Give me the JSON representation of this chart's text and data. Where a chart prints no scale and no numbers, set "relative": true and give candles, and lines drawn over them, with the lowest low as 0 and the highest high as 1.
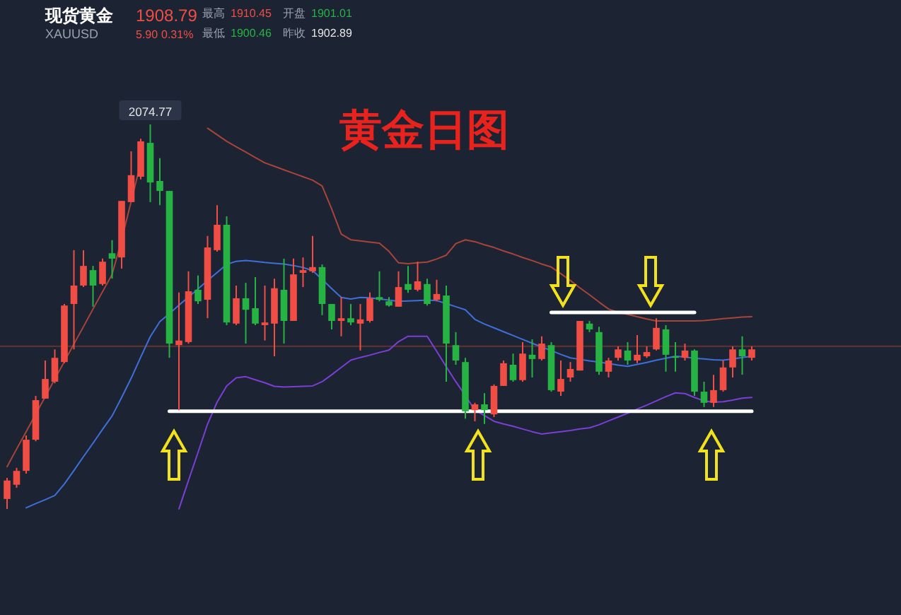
{
  "chart_data": {
    "type": "candlestick",
    "relative": true,
    "title": "黄金日图",
    "annotations": [
      "现货黄金",
      "XAUUSD",
      "1908.79",
      "5.90",
      "0.31%",
      "最高",
      "1910.45",
      "开盘",
      "1901.01",
      "最低",
      "1900.46",
      "昨收",
      "1902.89",
      {
        "text": "2074.77",
        "y": 1.0
      }
    ],
    "categories": [
      null,
      null,
      null,
      null,
      null,
      null,
      null,
      null,
      null,
      null,
      null,
      null,
      null,
      null,
      null,
      null,
      null,
      null,
      null,
      null,
      null,
      null,
      null,
      null,
      null,
      null,
      null,
      null,
      null,
      null,
      null,
      null,
      null,
      null,
      null,
      null,
      null,
      null,
      null,
      null,
      null,
      null,
      null,
      null,
      null,
      null,
      null,
      null,
      null,
      null,
      null,
      null,
      null,
      null,
      null,
      null,
      null,
      null,
      null,
      null,
      null,
      null,
      null,
      null,
      null,
      null,
      null,
      null,
      null,
      null,
      null,
      null,
      null,
      null,
      null,
      null,
      null,
      null,
      null
    ],
    "ohlc": [
      [
        0.026,
        0.081,
        0.0,
        0.074
      ],
      [
        0.063,
        0.107,
        0.055,
        0.099
      ],
      [
        0.099,
        0.191,
        0.092,
        0.18
      ],
      [
        0.18,
        0.294,
        0.176,
        0.283
      ],
      [
        0.287,
        0.386,
        0.287,
        0.338
      ],
      [
        0.331,
        0.415,
        0.327,
        0.393
      ],
      [
        0.382,
        0.533,
        0.379,
        0.529
      ],
      [
        0.533,
        0.673,
        0.415,
        0.581
      ],
      [
        0.581,
        0.673,
        0.577,
        0.632
      ],
      [
        0.621,
        0.632,
        0.526,
        0.581
      ],
      [
        0.585,
        0.651,
        0.581,
        0.643
      ],
      [
        0.665,
        0.699,
        0.599,
        0.651
      ],
      [
        0.654,
        0.801,
        0.625,
        0.801
      ],
      [
        0.798,
        0.93,
        0.798,
        0.868
      ],
      [
        0.864,
        0.963,
        0.857,
        0.956
      ],
      [
        0.952,
        1.0,
        0.798,
        0.849
      ],
      [
        0.853,
        0.912,
        0.79,
        0.827
      ],
      [
        0.827,
        0.827,
        0.393,
        0.43
      ],
      [
        0.426,
        0.563,
        0.257,
        0.438
      ],
      [
        0.434,
        0.618,
        0.43,
        0.566
      ],
      [
        0.57,
        0.607,
        0.533,
        0.54
      ],
      [
        0.544,
        0.71,
        0.496,
        0.68
      ],
      [
        0.673,
        0.79,
        0.669,
        0.739
      ],
      [
        0.739,
        0.761,
        0.478,
        0.485
      ],
      [
        0.482,
        0.581,
        0.478,
        0.548
      ],
      [
        0.548,
        0.588,
        0.43,
        0.518
      ],
      [
        0.522,
        0.603,
        0.478,
        0.482
      ],
      [
        0.478,
        0.581,
        0.438,
        0.485
      ],
      [
        0.482,
        0.599,
        0.397,
        0.574
      ],
      [
        0.57,
        0.651,
        0.43,
        0.489
      ],
      [
        0.489,
        0.651,
        0.489,
        0.61
      ],
      [
        0.614,
        0.654,
        0.577,
        0.621
      ],
      [
        0.618,
        0.71,
        0.614,
        0.629
      ],
      [
        0.629,
        0.636,
        0.504,
        0.533
      ],
      [
        0.533,
        0.533,
        0.467,
        0.489
      ],
      [
        0.489,
        0.551,
        0.449,
        0.496
      ],
      [
        0.496,
        0.533,
        0.478,
        0.485
      ],
      [
        0.482,
        0.533,
        0.412,
        0.493
      ],
      [
        0.489,
        0.563,
        0.485,
        0.548
      ],
      [
        0.551,
        0.618,
        0.54,
        0.544
      ],
      [
        0.54,
        0.551,
        0.526,
        0.529
      ],
      [
        0.526,
        0.618,
        0.526,
        0.577
      ],
      [
        0.585,
        0.632,
        0.562,
        0.57
      ],
      [
        0.57,
        0.643,
        0.566,
        0.592
      ],
      [
        0.585,
        0.599,
        0.529,
        0.533
      ],
      [
        0.544,
        0.596,
        0.54,
        0.559
      ],
      [
        0.555,
        0.581,
        0.331,
        0.43
      ],
      [
        0.426,
        0.46,
        0.375,
        0.386
      ],
      [
        0.382,
        0.393,
        0.235,
        0.254
      ],
      [
        0.257,
        0.276,
        0.228,
        0.272
      ],
      [
        0.272,
        0.301,
        0.221,
        0.257
      ],
      [
        0.246,
        0.324,
        0.239,
        0.32
      ],
      [
        0.32,
        0.386,
        0.32,
        0.379
      ],
      [
        0.375,
        0.404,
        0.331,
        0.335
      ],
      [
        0.335,
        0.434,
        0.331,
        0.404
      ],
      [
        0.401,
        0.441,
        0.342,
        0.39
      ],
      [
        0.39,
        0.449,
        0.386,
        0.43
      ],
      [
        0.426,
        0.434,
        0.305,
        0.309
      ],
      [
        0.305,
        0.386,
        0.294,
        0.338
      ],
      [
        0.342,
        0.382,
        0.331,
        0.364
      ],
      [
        0.36,
        0.489,
        0.36,
        0.489
      ],
      [
        0.482,
        0.489,
        0.46,
        0.467
      ],
      [
        0.46,
        0.474,
        0.349,
        0.357
      ],
      [
        0.357,
        0.393,
        0.342,
        0.386
      ],
      [
        0.393,
        0.423,
        0.386,
        0.415
      ],
      [
        0.412,
        0.434,
        0.375,
        0.386
      ],
      [
        0.386,
        0.452,
        0.379,
        0.401
      ],
      [
        0.397,
        0.423,
        0.393,
        0.408
      ],
      [
        0.415,
        0.496,
        0.412,
        0.471
      ],
      [
        0.467,
        0.478,
        0.357,
        0.401
      ],
      [
        0.397,
        0.434,
        0.357,
        0.393
      ],
      [
        0.393,
        0.43,
        0.386,
        0.412
      ],
      [
        0.412,
        0.415,
        0.294,
        0.305
      ],
      [
        0.305,
        0.331,
        0.265,
        0.276
      ],
      [
        0.276,
        0.349,
        0.265,
        0.309
      ],
      [
        0.309,
        0.386,
        0.305,
        0.368
      ],
      [
        0.368,
        0.423,
        0.342,
        0.415
      ],
      [
        0.415,
        0.449,
        0.349,
        0.397
      ],
      [
        0.393,
        0.423,
        0.386,
        0.415
      ]
    ],
    "colors": [
      "#f04e45",
      "#f04e45",
      "#f04e45",
      "#f04e45",
      "#f04e45",
      "#f04e45",
      "#f04e45",
      "#f04e45",
      "#f04e45",
      "#27b344",
      "#f04e45",
      "#27b344",
      "#f04e45",
      "#f04e45",
      "#f04e45",
      "#27b344",
      "#27b344",
      "#27b344",
      "#f04e45",
      "#f04e45",
      "#27b344",
      "#f04e45",
      "#f04e45",
      "#27b344",
      "#f04e45",
      "#27b344",
      "#27b344",
      "#f04e45",
      "#f04e45",
      "#27b344",
      "#f04e45",
      "#f04e45",
      "#f04e45",
      "#27b344",
      "#27b344",
      "#f04e45",
      "#27b344",
      "#f04e45",
      "#f04e45",
      "#27b344",
      "#27b344",
      "#f04e45",
      "#27b344",
      "#f04e45",
      "#27b344",
      "#f04e45",
      "#27b344",
      "#27b344",
      "#27b344",
      "#f04e45",
      "#27b344",
      "#f04e45",
      "#f04e45",
      "#27b344",
      "#f04e45",
      "#27b344",
      "#f04e45",
      "#27b344",
      "#f04e45",
      "#f04e45",
      "#f04e45",
      "#27b344",
      "#27b344",
      "#f04e45",
      "#f04e45",
      "#27b344",
      "#f04e45",
      "#f04e45",
      "#f04e45",
      "#27b344",
      "#27b344",
      "#f04e45",
      "#27b344",
      "#27b344",
      "#f04e45",
      "#f04e45",
      "#f04e45",
      "#27b344",
      "#f04e45"
    ],
    "series": [
      {
        "type": "line",
        "color": "#a8443a",
        "values": [
          0.11,
          0.156,
          0.201,
          0.247,
          0.292,
          0.338,
          0.383,
          0.429,
          0.474,
          0.52,
          0.565,
          0.61,
          0.7,
          0.8,
          0.9,
          null,
          null,
          null,
          null,
          null,
          null,
          0.99,
          0.973,
          0.956,
          0.942,
          0.928,
          0.914,
          0.9,
          0.891,
          0.882,
          0.873,
          0.864,
          0.855,
          0.84,
          0.78,
          0.715,
          0.7,
          0.697,
          0.694,
          0.691,
          0.67,
          0.64,
          0.638,
          0.64,
          0.642,
          0.65,
          0.66,
          0.69,
          0.7,
          0.695,
          0.687,
          0.68,
          0.671,
          0.663,
          0.654,
          0.646,
          0.637,
          0.629,
          0.612,
          0.594,
          0.575,
          0.557,
          0.538,
          0.52,
          0.511,
          0.506,
          0.5,
          0.494,
          0.489,
          0.489,
          0.489,
          0.489,
          0.489,
          0.49,
          0.492,
          0.495,
          0.497,
          0.499,
          0.5
        ]
      },
      {
        "type": "line",
        "color": "#3f6fd8",
        "values": [
          null,
          null,
          0.003,
          0.014,
          0.024,
          0.035,
          0.065,
          0.1,
          0.136,
          0.171,
          0.207,
          0.242,
          0.29,
          0.34,
          0.395,
          0.448,
          0.487,
          0.508,
          0.53,
          0.551,
          0.572,
          0.594,
          0.615,
          0.636,
          0.644,
          0.646,
          0.644,
          0.641,
          0.639,
          0.637,
          0.633,
          0.628,
          0.62,
          0.597,
          0.573,
          0.55,
          0.546,
          0.55,
          0.549,
          0.546,
          0.543,
          0.54,
          0.541,
          0.542,
          0.543,
          0.542,
          0.534,
          0.526,
          0.518,
          0.493,
          0.481,
          0.471,
          0.461,
          0.451,
          0.441,
          0.431,
          0.421,
          0.412,
          0.402,
          0.393,
          0.389,
          0.385,
          0.382,
          0.378,
          0.374,
          0.371,
          0.376,
          0.381,
          0.387,
          0.392,
          0.397,
          0.395,
          0.392,
          0.39,
          0.388,
          0.387,
          0.39,
          0.394,
          0.397
        ]
      },
      {
        "type": "line",
        "color": "#7b3fd6",
        "values": [
          null,
          null,
          null,
          null,
          null,
          null,
          null,
          null,
          null,
          null,
          null,
          null,
          null,
          null,
          null,
          null,
          null,
          null,
          0.0,
          0.074,
          0.147,
          0.221,
          0.278,
          0.32,
          0.341,
          0.344,
          0.336,
          0.328,
          0.319,
          0.317,
          0.318,
          0.319,
          0.32,
          0.331,
          0.349,
          0.368,
          0.387,
          0.394,
          0.4,
          0.407,
          0.413,
          0.435,
          0.449,
          0.449,
          0.449,
          0.41,
          0.37,
          0.331,
          0.295,
          0.257,
          0.243,
          0.228,
          0.221,
          0.215,
          0.208,
          0.201,
          0.195,
          0.198,
          0.201,
          0.204,
          0.208,
          0.211,
          0.219,
          0.229,
          0.239,
          0.249,
          0.26,
          0.27,
          0.281,
          0.292,
          0.302,
          0.3,
          0.29,
          0.281,
          0.278,
          0.279,
          0.283,
          0.288,
          0.29
        ]
      },
      {
        "type": "line",
        "color": "#ffffff",
        "values": [
          null,
          null,
          null,
          null,
          null,
          null,
          null,
          null,
          null,
          null,
          null,
          null,
          null,
          null,
          null,
          null,
          null,
          0.254,
          0.254,
          0.254,
          0.254,
          0.254,
          0.254,
          0.254,
          0.254,
          0.254,
          0.254,
          0.254,
          0.254,
          0.254,
          0.254,
          0.254,
          0.254,
          0.254,
          0.254,
          0.254,
          0.254,
          0.254,
          0.254,
          0.254,
          0.254,
          0.254,
          0.254,
          0.254,
          0.254,
          0.254,
          0.254,
          0.254,
          0.254,
          0.254,
          0.254,
          0.254,
          0.254,
          0.254,
          0.254,
          0.254,
          0.254,
          0.254,
          0.254,
          0.254,
          0.254,
          0.254,
          0.254,
          0.254,
          0.254,
          0.254,
          0.254,
          0.254,
          0.254,
          0.254,
          0.254,
          0.254,
          0.254,
          0.254,
          0.254,
          0.254,
          0.254,
          0.254,
          0.254
        ]
      },
      {
        "type": "line",
        "color": "#ffffff",
        "values": [
          null,
          null,
          null,
          null,
          null,
          null,
          null,
          null,
          null,
          null,
          null,
          null,
          null,
          null,
          null,
          null,
          null,
          null,
          null,
          null,
          null,
          null,
          null,
          null,
          null,
          null,
          null,
          null,
          null,
          null,
          null,
          null,
          null,
          null,
          null,
          null,
          null,
          null,
          null,
          null,
          null,
          null,
          null,
          null,
          null,
          null,
          null,
          null,
          null,
          null,
          null,
          null,
          null,
          null,
          null,
          null,
          null,
          0.511,
          0.511,
          0.511,
          0.511,
          0.511,
          0.511,
          0.511,
          0.511,
          0.511,
          0.511,
          0.511,
          0.511,
          0.511,
          0.511,
          0.511,
          0.511,
          null,
          null,
          null,
          null,
          null,
          null
        ]
      }
    ],
    "ref_lines": [
      {
        "axis": "y",
        "value": 0.423,
        "color": "#5a3030"
      }
    ]
  }
}
